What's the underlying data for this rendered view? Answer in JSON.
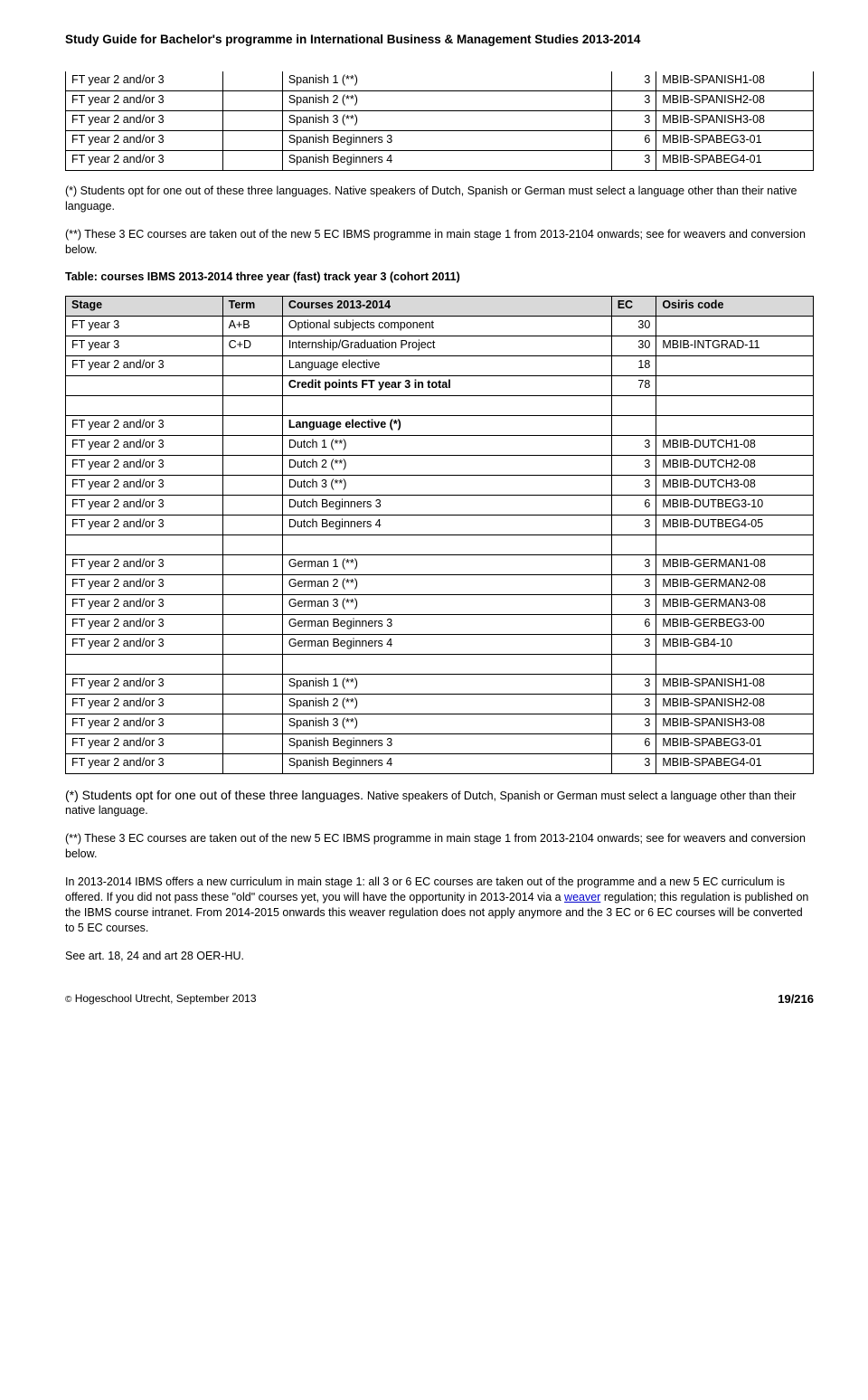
{
  "header": "Study Guide for Bachelor's programme in International Business & Management Studies 2013-2014",
  "table1": {
    "rows": [
      [
        "FT year 2 and/or 3",
        "",
        "Spanish 1 (**)",
        "3",
        "MBIB-SPANISH1-08"
      ],
      [
        "FT year 2 and/or 3",
        "",
        "Spanish 2 (**)",
        "3",
        "MBIB-SPANISH2-08"
      ],
      [
        "FT year 2 and/or 3",
        "",
        "Spanish 3 (**)",
        "3",
        "MBIB-SPANISH3-08"
      ],
      [
        "FT year 2 and/or 3",
        "",
        "Spanish Beginners 3",
        "6",
        "MBIB-SPABEG3-01"
      ],
      [
        "FT year 2 and/or 3",
        "",
        "Spanish Beginners 4",
        "3",
        "MBIB-SPABEG4-01"
      ]
    ]
  },
  "note_star_1": "(*) Students opt for one out of these three languages. Native speakers of Dutch, Spanish or German must select a language other than their native language.",
  "note_dstar_1": "(**) These 3 EC courses are taken out of the new 5 EC IBMS programme in main stage 1 from 2013-2104 onwards; see for weavers and conversion below.",
  "table2_caption": "Table: courses IBMS 2013-2014 three year (fast) track year 3 (cohort 2011)",
  "table2": {
    "head": [
      "Stage",
      "Term",
      "Courses 2013-2014",
      "EC",
      "Osiris code"
    ],
    "rows": [
      {
        "c": [
          "FT year 3",
          "A+B",
          "Optional subjects component",
          "30",
          ""
        ]
      },
      {
        "c": [
          "FT year 3",
          "C+D",
          "Internship/Graduation Project",
          "30",
          "MBIB-INTGRAD-11"
        ]
      },
      {
        "c": [
          "FT year 2 and/or 3",
          "",
          "Language elective",
          "18",
          ""
        ]
      },
      {
        "c": [
          "",
          "",
          "Credit points FT year 3 in total",
          "78",
          ""
        ],
        "bold_course": true
      },
      {
        "blank": true
      },
      {
        "c": [
          "FT year 2 and/or 3",
          "",
          "Language elective (*)",
          "",
          ""
        ],
        "bold_course": true
      },
      {
        "c": [
          "FT year 2 and/or 3",
          "",
          "Dutch 1 (**)",
          "3",
          "MBIB-DUTCH1-08"
        ]
      },
      {
        "c": [
          "FT year 2 and/or 3",
          "",
          "Dutch 2 (**)",
          "3",
          "MBIB-DUTCH2-08"
        ]
      },
      {
        "c": [
          "FT year 2 and/or 3",
          "",
          "Dutch 3 (**)",
          "3",
          "MBIB-DUTCH3-08"
        ]
      },
      {
        "c": [
          "FT year 2 and/or 3",
          "",
          "Dutch Beginners 3",
          "6",
          "MBIB-DUTBEG3-10"
        ]
      },
      {
        "c": [
          "FT year 2 and/or 3",
          "",
          "Dutch Beginners 4",
          "3",
          "MBIB-DUTBEG4-05"
        ]
      },
      {
        "blank": true
      },
      {
        "c": [
          "FT year 2 and/or 3",
          "",
          "German 1 (**)",
          "3",
          "MBIB-GERMAN1-08"
        ]
      },
      {
        "c": [
          "FT year 2 and/or 3",
          "",
          "German 2 (**)",
          "3",
          "MBIB-GERMAN2-08"
        ]
      },
      {
        "c": [
          "FT year 2 and/or 3",
          "",
          "German 3 (**)",
          "3",
          "MBIB-GERMAN3-08"
        ]
      },
      {
        "c": [
          "FT year 2 and/or 3",
          "",
          "German Beginners 3",
          "6",
          "MBIB-GERBEG3-00"
        ]
      },
      {
        "c": [
          "FT year 2 and/or 3",
          "",
          "German Beginners 4",
          "3",
          "MBIB-GB4-10"
        ]
      },
      {
        "blank": true
      },
      {
        "c": [
          "FT year 2 and/or 3",
          "",
          "Spanish 1 (**)",
          "3",
          "MBIB-SPANISH1-08"
        ]
      },
      {
        "c": [
          "FT year 2 and/or 3",
          "",
          "Spanish 2 (**)",
          "3",
          "MBIB-SPANISH2-08"
        ]
      },
      {
        "c": [
          "FT year 2 and/or 3",
          "",
          "Spanish 3 (**)",
          "3",
          "MBIB-SPANISH3-08"
        ]
      },
      {
        "c": [
          "FT year 2 and/or 3",
          "",
          "Spanish Beginners 3",
          "6",
          "MBIB-SPABEG3-01"
        ]
      },
      {
        "c": [
          "FT year 2 and/or 3",
          "",
          "Spanish Beginners 4",
          "3",
          "MBIB-SPABEG4-01"
        ]
      }
    ]
  },
  "note_star_2_a": "(*) Students opt for one out of these three languages. ",
  "note_star_2_b": "Native speakers of Dutch, Spanish or German must select a language other than their native language.",
  "note_dstar_2": " (**) These 3 EC courses are taken out of the new 5 EC IBMS programme in main stage 1 from 2013-2104 onwards; see for weavers and conversion below.",
  "curriculum_a": "In 2013-2014 IBMS offers a new curriculum in main stage 1: all 3 or 6 EC courses are taken out of the programme and a new 5 EC curriculum is offered. If you did not pass these \"old\" courses yet, you will have the opportunity in 2013-2014 via a ",
  "curriculum_link": "weaver",
  "curriculum_b": " regulation; this regulation is published on the IBMS course intranet. From 2014-2015 onwards this weaver regulation does not apply anymore and the 3 EC or 6 EC courses will be converted to 5 EC courses.",
  "see_art": "See art. 18, 24 and art 28 OER-HU.",
  "footer_left_sym": "©",
  "footer_left": " Hogeschool Utrecht, September 2013",
  "footer_right": "19/216"
}
